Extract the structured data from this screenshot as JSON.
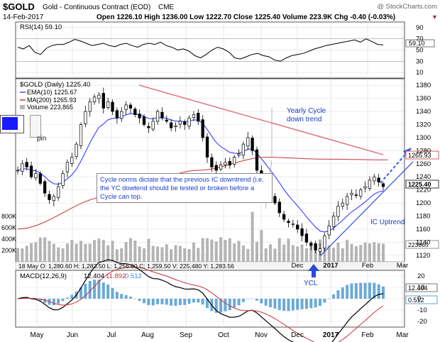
{
  "header": {
    "symbol": "$GOLD",
    "name": "Gold - Continuous Contract (EOD)",
    "exchange": "CME",
    "watermark": "@ StockCharts.com",
    "date": "14-Feb-2017",
    "stats": "Open 1226.10  High 1236.00  Low 1222.70  Close 1225.40  Volume 223.9K  Chg -0.40 (-0.03%)"
  },
  "rsi": {
    "label": "RSI(14) 59.10",
    "value_label": "59.10",
    "ticks": [
      "90",
      "70",
      "50",
      "30",
      "10"
    ],
    "tick_values": [
      90,
      70,
      50,
      30,
      10
    ],
    "series": [
      55,
      52,
      58,
      46,
      42,
      53,
      58,
      60,
      60,
      64,
      69,
      66,
      62,
      58,
      60,
      62,
      58,
      56,
      60,
      62,
      58,
      55,
      60,
      62,
      60,
      64,
      58,
      55,
      50,
      52,
      48,
      40,
      36,
      42,
      50,
      55,
      52,
      46,
      36,
      34,
      38,
      42,
      44,
      40,
      38,
      32,
      30,
      36,
      40,
      42,
      44,
      48,
      52,
      55,
      58,
      60,
      62,
      64,
      66,
      68,
      64,
      70,
      65,
      60,
      59
    ]
  },
  "price": {
    "title": "$GOLD (Daily) 1225.40",
    "ema_label": "EMA(10) 1225.67",
    "ma_label": "MA(200) 1265.93",
    "volume_label": "Volume 223,865",
    "ticks": [
      "1380",
      "1360",
      "1340",
      "1320",
      "1300",
      "1280",
      "1260",
      "1240",
      "1220",
      "1200",
      "1180",
      "1160",
      "1140",
      "1120"
    ],
    "tick_values": [
      1380,
      1360,
      1340,
      1320,
      1300,
      1280,
      1260,
      1240,
      1220,
      1200,
      1180,
      1160,
      1140,
      1120
    ],
    "ma_value_label": "1265.93",
    "last_value_label": "1225.40",
    "volume_value_label": "223865",
    "volume_ticks": [
      "800K",
      "600K",
      "400K",
      "200K"
    ],
    "volume_tick_values": [
      800,
      600,
      400,
      200
    ],
    "info_line": "18 May O: 1,280.60  H: 1,283.50  L: 1,256.00  C: 1,259.50  V: 225,480  Y: 1,283.56"
  },
  "annotations": {
    "yearly_cycle": [
      "Yearly Cycle",
      "down trend"
    ],
    "ic_uptrend": "IC Uptrend",
    "ycl": "YCL",
    "note": "Cycle norms dictate that the previous IC downtrend (i.e. the YC dowtend should be tested or broken before a Cycle can top.",
    "pin": "pin"
  },
  "macd": {
    "label": "MACD(12,26,9)",
    "macd_value": "12.404",
    "signal_value": "11.892",
    "hist_value": "0.512",
    "ticks": [
      "20",
      "10",
      "0",
      "-10",
      "-20"
    ],
    "tick_values": [
      20,
      10,
      0,
      -10,
      -20
    ]
  },
  "months": [
    "May",
    "Jun",
    "Jul",
    "Aug",
    "Sep",
    "Oct",
    "Nov",
    "Dec",
    "2017",
    "Feb",
    "Mar"
  ],
  "price_months": [
    "Dec",
    "2017",
    "Feb",
    "Mar"
  ],
  "colors": {
    "price": "#000000",
    "ema": "#3a3aff",
    "ma": "#c8323c",
    "trend": "#e06070",
    "uptrend": "#3a5ae0",
    "annotation": "#1a3cc8",
    "volume": "#b4b4b4",
    "hist": "#3a8ec8"
  },
  "chart_data": [
    {
      "type": "line",
      "title": "RSI(14)",
      "ylim": [
        0,
        100
      ],
      "series": [
        {
          "name": "RSI(14)",
          "last": 59.1
        }
      ]
    },
    {
      "type": "candlestick",
      "title": "$GOLD (Daily) 1225.40",
      "ylim": [
        1110,
        1390
      ],
      "x_range": [
        "2016-04-25",
        "2017-03-10"
      ],
      "closes_approx": [
        1250,
        1260,
        1255,
        1240,
        1245,
        1230,
        1215,
        1205,
        1210,
        1225,
        1245,
        1262,
        1270,
        1290,
        1320,
        1340,
        1355,
        1362,
        1365,
        1345,
        1355,
        1340,
        1330,
        1340,
        1350,
        1345,
        1335,
        1330,
        1320,
        1315,
        1325,
        1340,
        1330,
        1325,
        1315,
        1318,
        1325,
        1320,
        1330,
        1335,
        1325,
        1300,
        1270,
        1255,
        1250,
        1258,
        1262,
        1258,
        1270,
        1275,
        1290,
        1300,
        1280,
        1250,
        1230,
        1220,
        1210,
        1200,
        1185,
        1175,
        1170,
        1168,
        1160,
        1150,
        1140,
        1135,
        1128,
        1130,
        1150,
        1165,
        1180,
        1195,
        1200,
        1210,
        1215,
        1212,
        1220,
        1225,
        1235,
        1240,
        1232,
        1225
      ],
      "series": [
        {
          "name": "EMA(10)",
          "last": 1225.67
        },
        {
          "name": "MA(200)",
          "last": 1265.93
        }
      ],
      "close": 1225.4,
      "open": 1226.1,
      "high": 1236.0,
      "low": 1222.7,
      "volume": 223865
    },
    {
      "type": "line",
      "title": "MACD(12,26,9)",
      "ylim": [
        -25,
        25
      ],
      "series": [
        {
          "name": "MACD",
          "last": 12.404
        },
        {
          "name": "Signal",
          "last": 11.892
        },
        {
          "name": "Histogram",
          "last": 0.512
        }
      ]
    }
  ]
}
